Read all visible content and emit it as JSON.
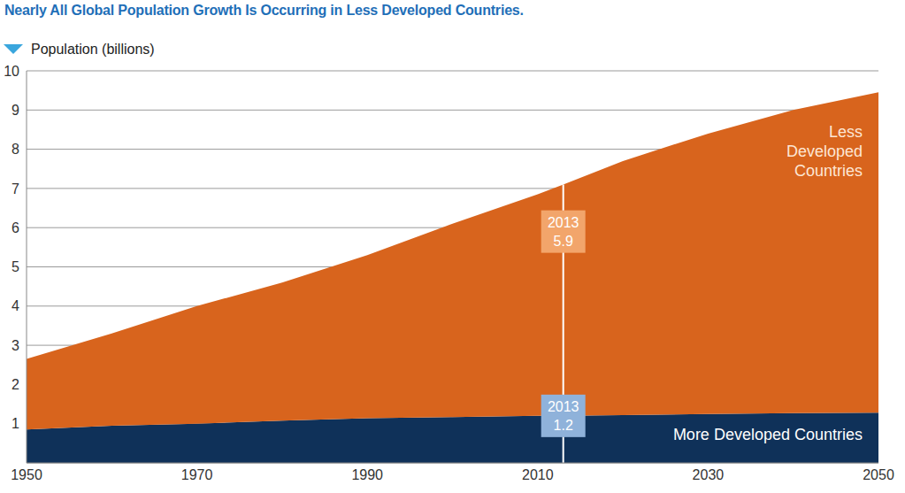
{
  "chart_data": {
    "type": "area",
    "title": "Nearly All Global Population Growth Is Occurring in Less Developed Countries.",
    "y_label": "Population (billions)",
    "stacked": true,
    "grid": true,
    "x": [
      1950,
      1960,
      1970,
      1980,
      1990,
      2000,
      2010,
      2013,
      2020,
      2030,
      2040,
      2050
    ],
    "xlim": [
      1950,
      2050
    ],
    "xticks": [
      1950,
      1970,
      1990,
      2010,
      2030,
      2050
    ],
    "ylim": [
      0,
      10
    ],
    "yticks": [
      1,
      2,
      3,
      4,
      5,
      6,
      7,
      8,
      9,
      10
    ],
    "series": [
      {
        "name": "More Developed Countries",
        "color": "#0f3159",
        "values": [
          0.85,
          0.95,
          1.0,
          1.08,
          1.14,
          1.17,
          1.2,
          1.2,
          1.22,
          1.25,
          1.27,
          1.28
        ]
      },
      {
        "name": "Less Developed Countries",
        "color": "#d8641d",
        "values": [
          1.8,
          2.35,
          3.0,
          3.52,
          4.16,
          4.93,
          5.65,
          5.9,
          6.48,
          7.15,
          7.73,
          8.17
        ]
      }
    ],
    "annotations": [
      {
        "x": 2013,
        "label": "2013",
        "value": 5.9,
        "series": "Less Developed Countries"
      },
      {
        "x": 2013,
        "label": "2013",
        "value": 1.2,
        "series": "More Developed Countries"
      }
    ]
  }
}
